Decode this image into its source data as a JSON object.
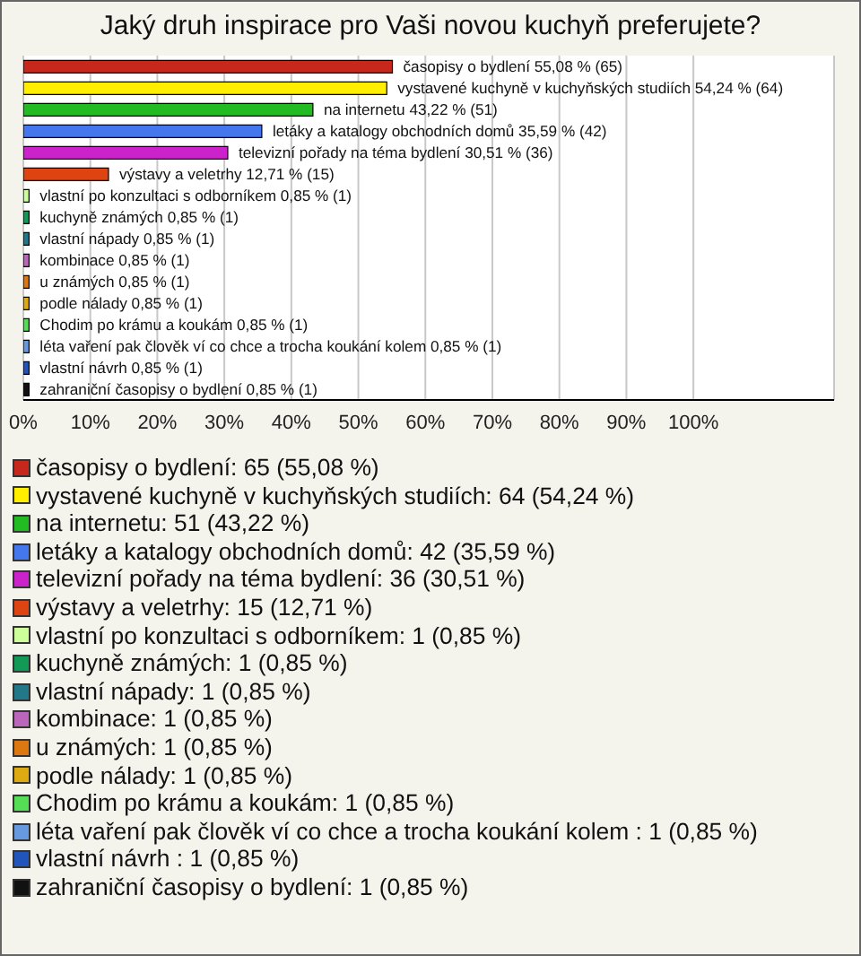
{
  "chart_data": {
    "type": "bar",
    "orientation": "horizontal",
    "title": "Jaký druh inspirace pro Vaši novou kuchyň preferujete?",
    "categories": [
      "časopisy o bydlení",
      "vystavené kuchyně v kuchyňských studiích",
      "na internetu",
      "letáky a katalogy obchodních domů",
      "televizní pořady na téma bydlení",
      "výstavy a veletrhy",
      "vlastní po konzultaci s odborníkem",
      "kuchyně známých",
      "vlastní nápady",
      "kombinace",
      "u známých",
      "podle nálady",
      "Chodim po krámu a koukám",
      "léta vaření pak člověk ví co chce a trocha koukání kolem",
      "vlastní návrh",
      "zahraniční časopisy o bydlení"
    ],
    "values": [
      55.08,
      54.24,
      43.22,
      35.59,
      30.51,
      12.71,
      0.85,
      0.85,
      0.85,
      0.85,
      0.85,
      0.85,
      0.85,
      0.85,
      0.85,
      0.85
    ],
    "value_labels": [
      "55,08 % (65)",
      "54,24 % (64)",
      "43,22 % (51)",
      "35,59 % (42)",
      "30,51 % (36)",
      "12,71 % (15)",
      "0,85 % (1)",
      "0,85 % (1)",
      "0,85 % (1)",
      "0,85 % (1)",
      "0,85 % (1)",
      "0,85 % (1)",
      "0,85 % (1)",
      "0,85 % (1)",
      "0,85 % (1)",
      "0,85 % (1)"
    ],
    "colors": [
      "#c8281c",
      "#ffee00",
      "#22bb22",
      "#4477ee",
      "#cc22cc",
      "#dd4411",
      "#ccff99",
      "#119955",
      "#227788",
      "#bb66bb",
      "#dd7711",
      "#ddaa11",
      "#55dd55",
      "#6699dd",
      "#2255bb",
      "#111111"
    ],
    "xlim": [
      0,
      121
    ],
    "xticks": [
      {
        "value": 0,
        "label": "0%"
      },
      {
        "value": 10,
        "label": "10%"
      },
      {
        "value": 20,
        "label": "20%"
      },
      {
        "value": 30,
        "label": "30%"
      },
      {
        "value": 40,
        "label": "40%"
      },
      {
        "value": 50,
        "label": "50%"
      },
      {
        "value": 60,
        "label": "60%"
      },
      {
        "value": 70,
        "label": "70%"
      },
      {
        "value": 80,
        "label": "80%"
      },
      {
        "value": 90,
        "label": "90%"
      },
      {
        "value": 100,
        "label": "100%"
      }
    ],
    "grid": "x",
    "annotations": [
      "časopisy o bydlení: 65 (55,08 %)",
      "vystavené kuchyně v kuchyňských studiích: 64 (54,24 %)",
      "na internetu: 51 (43,22 %)",
      "letáky a katalogy obchodních domů: 42 (35,59 %)",
      "televizní pořady na téma bydlení: 36 (30,51 %)",
      "výstavy a veletrhy: 15 (12,71 %)",
      "vlastní po konzultaci s odborníkem: 1 (0,85 %)",
      "kuchyně známých: 1 (0,85 %)",
      "vlastní nápady: 1 (0,85 %)",
      "kombinace: 1 (0,85 %)",
      "u známých: 1 (0,85 %)",
      "podle nálady: 1 (0,85 %)",
      "Chodim po krámu a koukám: 1 (0,85 %)",
      "léta vaření pak člověk ví co chce a trocha koukání kolem : 1 (0,85 %)",
      "vlastní návrh : 1 (0,85 %)",
      "zahraniční časopisy o bydlení: 1 (0,85 %)"
    ]
  }
}
